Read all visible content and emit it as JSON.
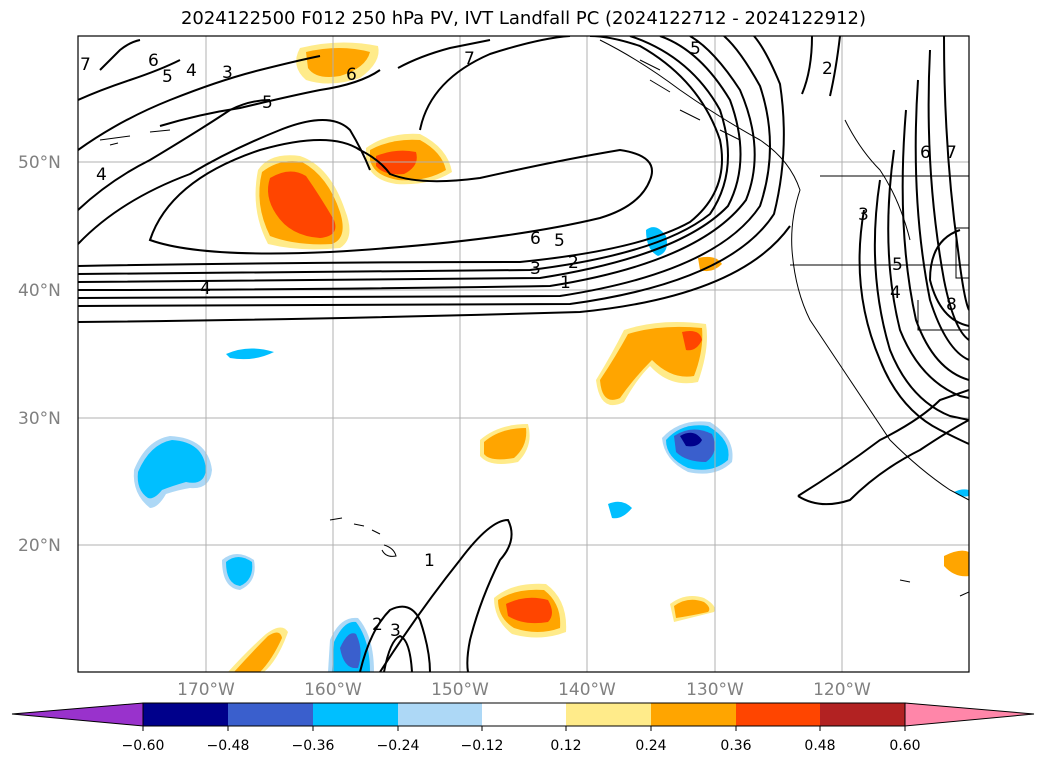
{
  "title": "2024122500 F012 250 hPa PV, IVT Landfall PC (2024122712 - 2024122912)",
  "map": {
    "lon_range": [
      -180,
      -110
    ],
    "lat_range": [
      10,
      60
    ],
    "lat_ticks": [
      {
        "value": 20,
        "label": "20°N"
      },
      {
        "value": 30,
        "label": "30°N"
      },
      {
        "value": 40,
        "label": "40°N"
      },
      {
        "value": 50,
        "label": "50°N"
      }
    ],
    "lon_ticks": [
      {
        "value": -170,
        "label": "170°W"
      },
      {
        "value": -160,
        "label": "160°W"
      },
      {
        "value": -150,
        "label": "150°W"
      },
      {
        "value": -140,
        "label": "140°W"
      },
      {
        "value": -130,
        "label": "130°W"
      },
      {
        "value": -120,
        "label": "120°W"
      }
    ],
    "gridlines": true,
    "contour_labels": [
      "1",
      "2",
      "3",
      "4",
      "5",
      "6",
      "7",
      "8"
    ]
  },
  "colorbar": {
    "ticks": [
      "−0.60",
      "−0.48",
      "−0.36",
      "−0.24",
      "−0.12",
      "0.12",
      "0.24",
      "0.36",
      "0.48",
      "0.60"
    ],
    "colors": [
      "#9932cc",
      "#00008b",
      "#3a5fcd",
      "#00bfff",
      "#add8f6",
      "#ffffff",
      "#ffeb8a",
      "#ffa500",
      "#ff4500",
      "#b22222",
      "#ff86a9"
    ],
    "extend": "both"
  }
}
